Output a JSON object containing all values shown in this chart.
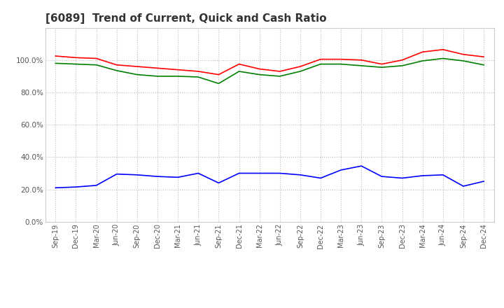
{
  "title": "[6089]  Trend of Current, Quick and Cash Ratio",
  "x_labels": [
    "Sep-19",
    "Dec-19",
    "Mar-20",
    "Jun-20",
    "Sep-20",
    "Dec-20",
    "Mar-21",
    "Jun-21",
    "Sep-21",
    "Dec-21",
    "Mar-22",
    "Jun-22",
    "Sep-22",
    "Dec-22",
    "Mar-23",
    "Jun-23",
    "Sep-23",
    "Dec-23",
    "Mar-24",
    "Jun-24",
    "Sep-24",
    "Dec-24"
  ],
  "current_ratio": [
    102.5,
    101.5,
    101.0,
    97.0,
    96.0,
    95.0,
    94.0,
    93.0,
    91.0,
    97.5,
    94.5,
    93.0,
    96.0,
    100.5,
    100.5,
    100.0,
    97.5,
    100.0,
    105.0,
    106.5,
    103.5,
    102.0
  ],
  "quick_ratio": [
    98.0,
    97.5,
    97.0,
    93.5,
    91.0,
    90.0,
    90.0,
    89.5,
    85.5,
    93.0,
    91.0,
    90.0,
    93.0,
    97.5,
    97.5,
    96.5,
    95.5,
    96.5,
    99.5,
    101.0,
    99.5,
    97.0
  ],
  "cash_ratio": [
    21.0,
    21.5,
    22.5,
    29.5,
    29.0,
    28.0,
    27.5,
    30.0,
    24.0,
    30.0,
    30.0,
    30.0,
    29.0,
    27.0,
    32.0,
    34.5,
    28.0,
    27.0,
    28.5,
    29.0,
    22.0,
    25.0
  ],
  "current_color": "#FF0000",
  "quick_color": "#008000",
  "cash_color": "#0000FF",
  "ylim": [
    0,
    120
  ],
  "yticks": [
    0,
    20,
    40,
    60,
    80,
    100
  ],
  "background_color": "#FFFFFF",
  "grid_color": "#BBBBBB",
  "title_fontsize": 11
}
